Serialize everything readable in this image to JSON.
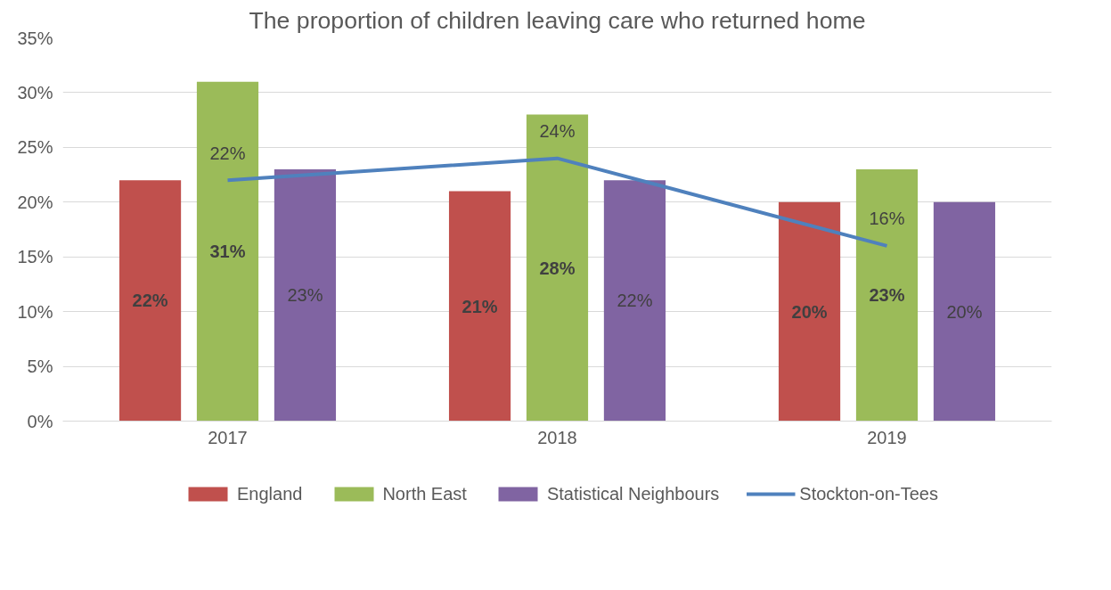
{
  "chart_data": {
    "type": "bar",
    "title": "The proportion of children leaving care who returned home",
    "categories": [
      "2017",
      "2018",
      "2019"
    ],
    "series": [
      {
        "name": "England",
        "color": "#c0504d",
        "values": [
          22,
          21,
          20
        ],
        "value_labels": [
          "22%",
          "21%",
          "20%"
        ]
      },
      {
        "name": "North East",
        "color": "#9bbb59",
        "values": [
          31,
          28,
          23
        ],
        "value_labels": [
          "31%",
          "28%",
          "23%"
        ]
      },
      {
        "name": "Statistical Neighbours",
        "color": "#8064a2",
        "values": [
          23,
          22,
          20
        ],
        "value_labels": [
          "23%",
          "22%",
          "20%"
        ]
      },
      {
        "name": "Stockton-on-Tees",
        "color": "#4f81bd",
        "values": [
          22,
          24,
          16
        ],
        "type": "line",
        "value_labels": [
          "22%",
          "24%",
          "16%"
        ]
      }
    ],
    "ylim": [
      0,
      35
    ],
    "yticks": [
      {
        "value": 0,
        "label": "0%"
      },
      {
        "value": 5,
        "label": "5%"
      },
      {
        "value": 10,
        "label": "10%"
      },
      {
        "value": 15,
        "label": "15%"
      },
      {
        "value": 20,
        "label": "20%"
      },
      {
        "value": 25,
        "label": "25%"
      },
      {
        "value": 30,
        "label": "30%"
      },
      {
        "value": 35,
        "label": "35%"
      }
    ],
    "data_labels": true,
    "grid": "y",
    "legend": "bottom",
    "marker": "none",
    "line_style": "solid"
  }
}
